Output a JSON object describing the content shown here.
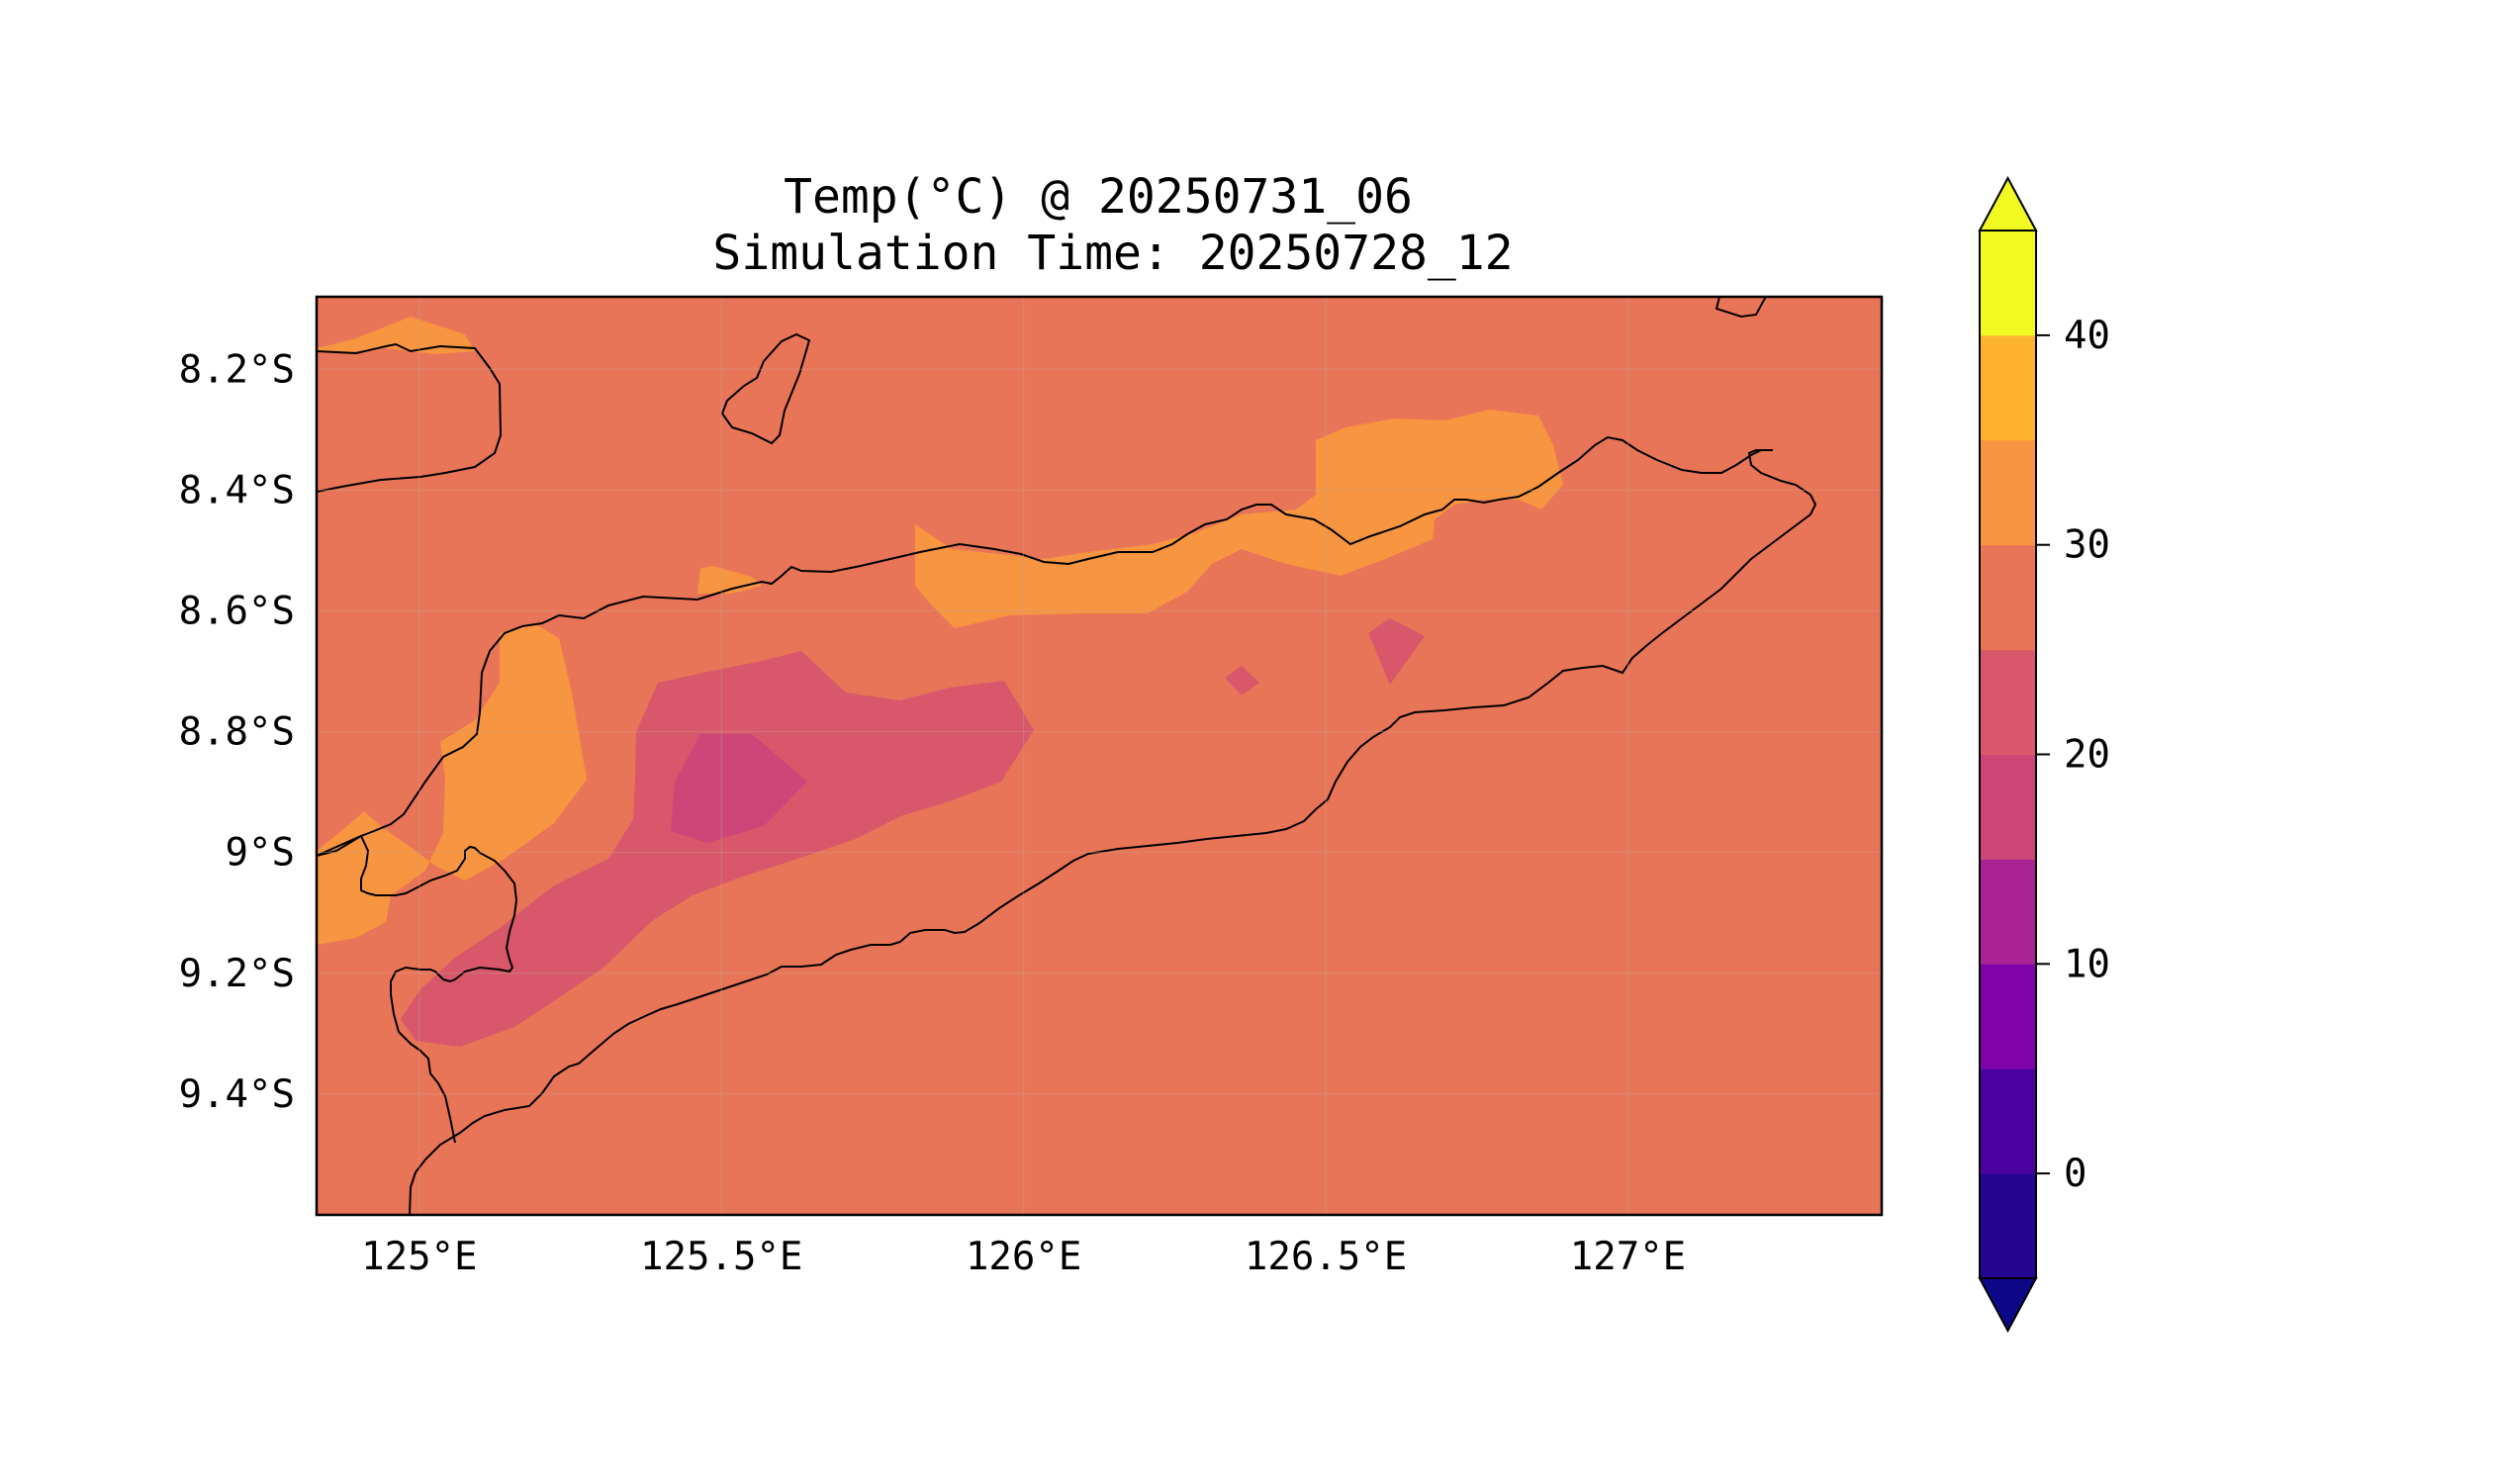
{
  "title": {
    "line1": "Temp(°C) @ 20250731_06",
    "line2": "Simulation Time: 20250728_12"
  },
  "map": {
    "lon_range": [
      124.83,
      127.42
    ],
    "lat_range": [
      -9.6,
      -8.08
    ],
    "x_ticks": [
      {
        "value": 125.0,
        "label": "125°E"
      },
      {
        "value": 125.5,
        "label": "125.5°E"
      },
      {
        "value": 126.0,
        "label": "126°E"
      },
      {
        "value": 126.5,
        "label": "126.5°E"
      },
      {
        "value": 127.0,
        "label": "127°E"
      }
    ],
    "y_ticks": [
      {
        "value": -8.2,
        "label": "8.2°S"
      },
      {
        "value": -8.4,
        "label": "8.4°S"
      },
      {
        "value": -8.6,
        "label": "8.6°S"
      },
      {
        "value": -8.8,
        "label": "8.8°S"
      },
      {
        "value": -9.0,
        "label": "9°S"
      },
      {
        "value": -9.2,
        "label": "9.2°S"
      },
      {
        "value": -9.4,
        "label": "9.4°S"
      }
    ],
    "gridlines": true,
    "background_level_color": "#e97558"
  },
  "colorbar": {
    "levels": [
      -5,
      0,
      5,
      10,
      15,
      20,
      25,
      30,
      35,
      40,
      45
    ],
    "colors": [
      "#240691",
      "#4c02a1",
      "#7e03a8",
      "#a92395",
      "#cc4778",
      "#d8576b",
      "#e97558",
      "#f89540",
      "#fdb32f",
      "#f0f921"
    ],
    "under_color": "#0d0887",
    "over_color": "#f0f921",
    "extend": "both",
    "ticks": [
      {
        "value": 0,
        "label": "0"
      },
      {
        "value": 10,
        "label": "10"
      },
      {
        "value": 20,
        "label": "20"
      },
      {
        "value": 30,
        "label": "30"
      },
      {
        "value": 40,
        "label": "40"
      }
    ]
  }
}
